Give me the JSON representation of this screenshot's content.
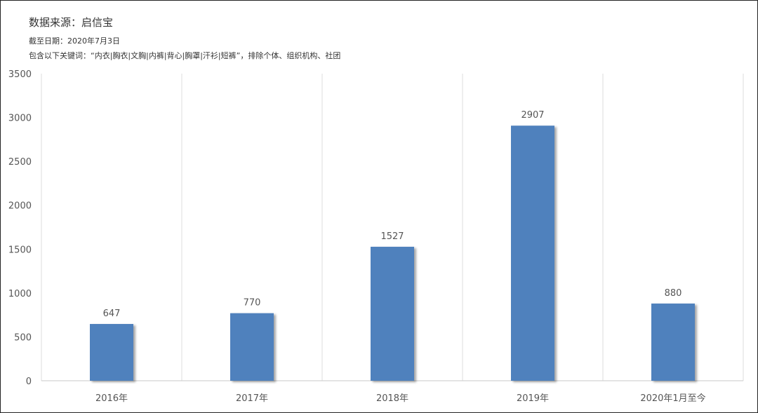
{
  "header": {
    "source": "数据来源：启信宝",
    "cutoff_date": "截至日期：2020年7月3日",
    "keywords_note": "包含以下关键词：“内衣|胸衣|文胸|内裤|背心|胸罩|汗衫|短裤”，排除个体、组织机构、社团"
  },
  "chart_data": {
    "type": "bar",
    "categories": [
      "2016年",
      "2017年",
      "2018年",
      "2019年",
      "2020年1月至今"
    ],
    "values": [
      647,
      770,
      1527,
      2907,
      880
    ],
    "ylim": [
      0,
      3500
    ],
    "yticks": [
      0,
      500,
      1000,
      1500,
      2000,
      2500,
      3000,
      3500
    ],
    "bar_color": "#4F81BD",
    "grid": "vertical-category-separators",
    "legend": "none",
    "title": "",
    "xlabel": "",
    "ylabel": ""
  }
}
